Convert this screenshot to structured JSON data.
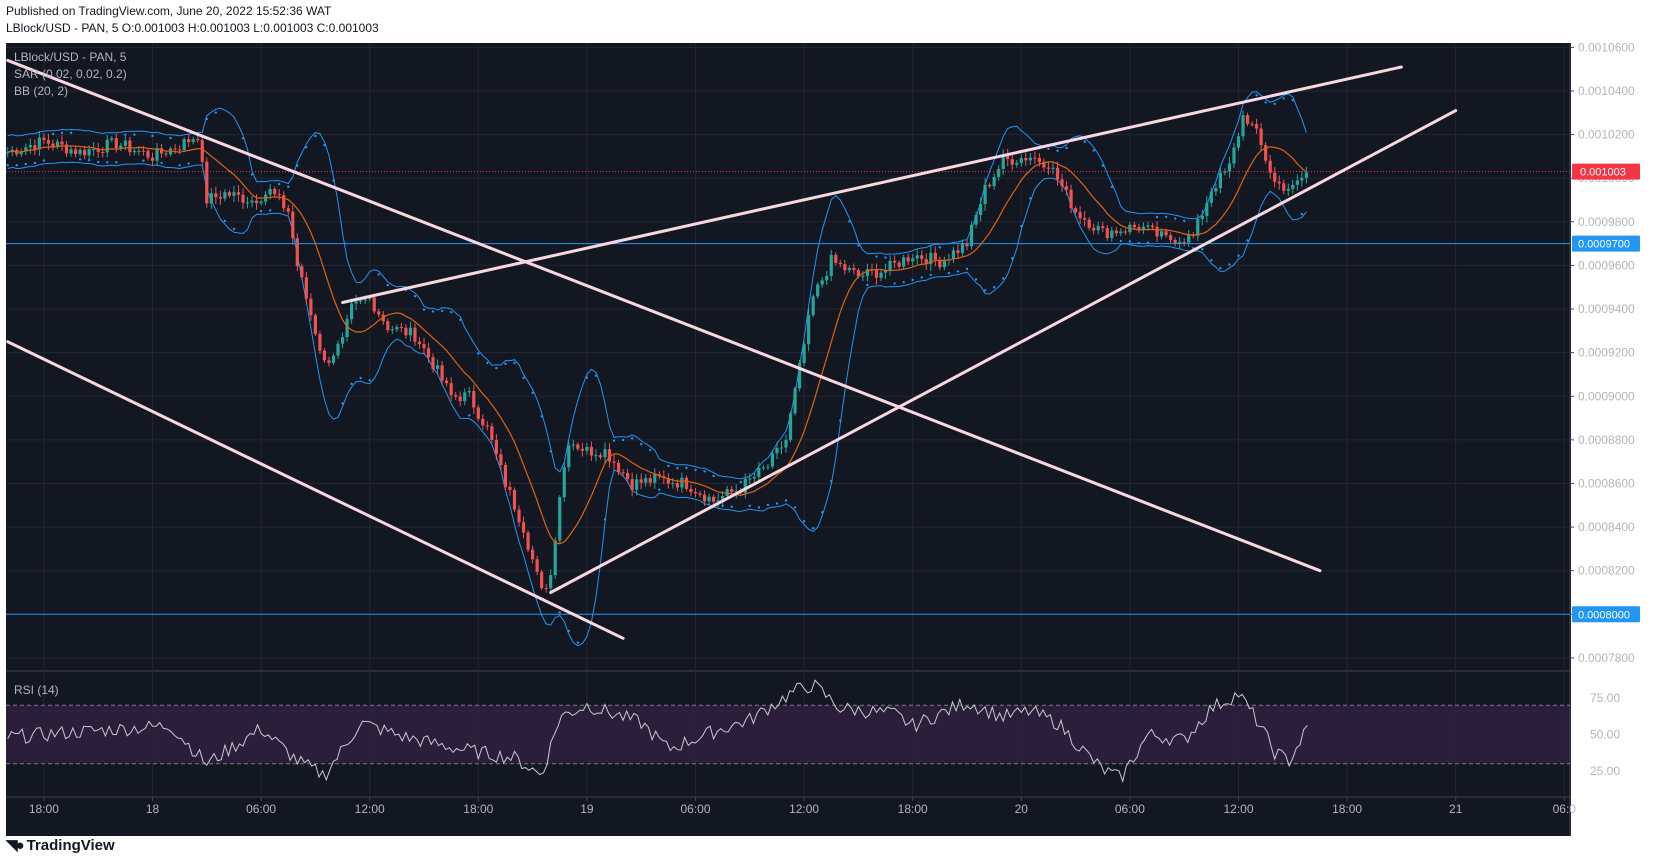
{
  "header": {
    "published": "Published on TradingView.com, June 20, 2022 15:52:36 WAT",
    "ohlc": "LBlock/USD - PAN, 5  O:0.001003 H:0.001003 L:0.001003 C:0.001003"
  },
  "footer": {
    "brand": "TradingView",
    "logo_icon": "tradingview-logo-icon"
  },
  "colors": {
    "background": "#131722",
    "frame": "#ffffff",
    "grid": "#232632",
    "trendline": "#f8d7e0",
    "bollinger": "#2196f3",
    "basis": "#e0620f",
    "sar": "#2196f3",
    "candle_up": "#26a69a",
    "candle_down": "#ef5350",
    "hline": "#2196f3",
    "current_price": "#f23645",
    "rsi_line": "#c9c9cf",
    "rsi_band": "#2a1e3b"
  },
  "chart_data": [
    {
      "type": "candlestick",
      "title": "LBlock/USD - PAN, 5",
      "indicators": [
        "SAR (0.02, 0.02, 0.2)",
        "BB (20, 2)"
      ],
      "y_ticks": [
        "0.0010600",
        "0.0010400",
        "0.0010200",
        "0.0010000",
        "0.0009800",
        "0.0009600",
        "0.0009400",
        "0.0009200",
        "0.0009000",
        "0.0008800",
        "0.0008600",
        "0.0008400",
        "0.0008200",
        "0.0008000",
        "0.0007800"
      ],
      "ylim": [
        0.000774,
        0.001062
      ],
      "x_ticks": [
        "18:00",
        "18",
        "06:00",
        "12:00",
        "18:00",
        "19",
        "06:00",
        "12:00",
        "18:00",
        "20",
        "06:00",
        "12:00",
        "18:00",
        "21",
        "06:0"
      ],
      "x_tick_hours": [
        -6,
        0,
        6,
        12,
        18,
        24,
        30,
        36,
        42,
        48,
        54,
        60,
        66,
        72,
        78
      ],
      "x_unit": "hours from Jun 18 00:00",
      "price_path": [
        {
          "t": -8,
          "p": 0.001012
        },
        {
          "t": -6,
          "p": 0.001017
        },
        {
          "t": -4,
          "p": 0.001012
        },
        {
          "t": -2,
          "p": 0.001016
        },
        {
          "t": 0,
          "p": 0.00101
        },
        {
          "t": 1.5,
          "p": 0.001015
        },
        {
          "t": 2.5,
          "p": 0.00102
        },
        {
          "t": 3,
          "p": 0.00099
        },
        {
          "t": 4,
          "p": 0.000993
        },
        {
          "t": 5.5,
          "p": 0.00099
        },
        {
          "t": 6.5,
          "p": 0.000994
        },
        {
          "t": 7.5,
          "p": 0.000985
        },
        {
          "t": 8,
          "p": 0.00096
        },
        {
          "t": 8.5,
          "p": 0.000945
        },
        {
          "t": 9.5,
          "p": 0.000915
        },
        {
          "t": 10.5,
          "p": 0.000925
        },
        {
          "t": 11,
          "p": 0.00094
        },
        {
          "t": 12,
          "p": 0.000945
        },
        {
          "t": 13,
          "p": 0.000932
        },
        {
          "t": 14.5,
          "p": 0.000928
        },
        {
          "t": 15.5,
          "p": 0.000915
        },
        {
          "t": 16.5,
          "p": 0.0009
        },
        {
          "t": 17.5,
          "p": 0.0009
        },
        {
          "t": 18.5,
          "p": 0.000885
        },
        {
          "t": 19.5,
          "p": 0.00086
        },
        {
          "t": 20.5,
          "p": 0.00084
        },
        {
          "t": 21.5,
          "p": 0.00081
        },
        {
          "t": 22,
          "p": 0.000818
        },
        {
          "t": 22.5,
          "p": 0.000855
        },
        {
          "t": 23,
          "p": 0.00088
        },
        {
          "t": 24,
          "p": 0.000875
        },
        {
          "t": 25,
          "p": 0.000875
        },
        {
          "t": 26.5,
          "p": 0.00086
        },
        {
          "t": 28,
          "p": 0.000862
        },
        {
          "t": 29.5,
          "p": 0.00086
        },
        {
          "t": 31,
          "p": 0.000852
        },
        {
          "t": 32.5,
          "p": 0.000858
        },
        {
          "t": 34,
          "p": 0.000868
        },
        {
          "t": 35,
          "p": 0.00088
        },
        {
          "t": 35.8,
          "p": 0.000915
        },
        {
          "t": 36.5,
          "p": 0.000945
        },
        {
          "t": 37.5,
          "p": 0.000962
        },
        {
          "t": 39,
          "p": 0.000955
        },
        {
          "t": 40.5,
          "p": 0.000958
        },
        {
          "t": 42,
          "p": 0.000965
        },
        {
          "t": 43.5,
          "p": 0.000962
        },
        {
          "t": 45,
          "p": 0.00097
        },
        {
          "t": 46,
          "p": 0.000995
        },
        {
          "t": 47,
          "p": 0.001008
        },
        {
          "t": 48.5,
          "p": 0.00101
        },
        {
          "t": 49.5,
          "p": 0.001007
        },
        {
          "t": 51,
          "p": 0.000985
        },
        {
          "t": 52.5,
          "p": 0.000975
        },
        {
          "t": 54.5,
          "p": 0.000978
        },
        {
          "t": 56,
          "p": 0.000972
        },
        {
          "t": 57.5,
          "p": 0.000973
        },
        {
          "t": 58.5,
          "p": 0.000995
        },
        {
          "t": 59.5,
          "p": 0.001005
        },
        {
          "t": 60.3,
          "p": 0.00103
        },
        {
          "t": 61,
          "p": 0.00102
        },
        {
          "t": 62,
          "p": 0.000998
        },
        {
          "t": 63,
          "p": 0.000995
        },
        {
          "t": 63.8,
          "p": 0.001003
        }
      ],
      "trendlines": [
        {
          "t1": -8,
          "p1": 0.001054,
          "t2": 64.5,
          "p2": 0.00082
        },
        {
          "t1": -8,
          "p1": 0.000925,
          "t2": 26,
          "p2": 0.000789
        },
        {
          "t1": 10.5,
          "p1": 0.000943,
          "t2": 69,
          "p2": 0.001051
        },
        {
          "t1": 22,
          "p1": 0.00081,
          "t2": 72,
          "p2": 0.001031
        }
      ],
      "horizontal_lines": [
        {
          "value": 0.00097,
          "label": "0.0009700"
        },
        {
          "value": 0.0008,
          "label": "0.0008000"
        }
      ],
      "current_price": {
        "value": 0.001003,
        "label": "0.001003"
      }
    },
    {
      "type": "line",
      "title": "RSI (14)",
      "y_ticks": [
        "75.00",
        "50.00",
        "25.00"
      ],
      "ylim": [
        10,
        90
      ],
      "band": [
        30,
        70
      ],
      "rsi_path": [
        {
          "t": -8,
          "v": 48
        },
        {
          "t": -4,
          "v": 52
        },
        {
          "t": 1,
          "v": 56
        },
        {
          "t": 3,
          "v": 30
        },
        {
          "t": 6,
          "v": 54
        },
        {
          "t": 8,
          "v": 32
        },
        {
          "t": 9.5,
          "v": 22
        },
        {
          "t": 11.5,
          "v": 58
        },
        {
          "t": 14,
          "v": 48
        },
        {
          "t": 17,
          "v": 40
        },
        {
          "t": 20,
          "v": 34
        },
        {
          "t": 21.5,
          "v": 22
        },
        {
          "t": 22.5,
          "v": 62
        },
        {
          "t": 24,
          "v": 70
        },
        {
          "t": 27,
          "v": 58
        },
        {
          "t": 28.5,
          "v": 40
        },
        {
          "t": 31,
          "v": 52
        },
        {
          "t": 33,
          "v": 60
        },
        {
          "t": 35.5,
          "v": 80
        },
        {
          "t": 36.5,
          "v": 84
        },
        {
          "t": 38,
          "v": 68
        },
        {
          "t": 41,
          "v": 64
        },
        {
          "t": 42,
          "v": 56
        },
        {
          "t": 45,
          "v": 72
        },
        {
          "t": 47,
          "v": 62
        },
        {
          "t": 48.5,
          "v": 66
        },
        {
          "t": 50,
          "v": 58
        },
        {
          "t": 51.5,
          "v": 38
        },
        {
          "t": 52.5,
          "v": 26
        },
        {
          "t": 53.5,
          "v": 20
        },
        {
          "t": 55,
          "v": 50
        },
        {
          "t": 57,
          "v": 46
        },
        {
          "t": 58.5,
          "v": 68
        },
        {
          "t": 60,
          "v": 78
        },
        {
          "t": 61,
          "v": 60
        },
        {
          "t": 62,
          "v": 38
        },
        {
          "t": 62.8,
          "v": 32
        },
        {
          "t": 63.8,
          "v": 54
        }
      ]
    }
  ]
}
